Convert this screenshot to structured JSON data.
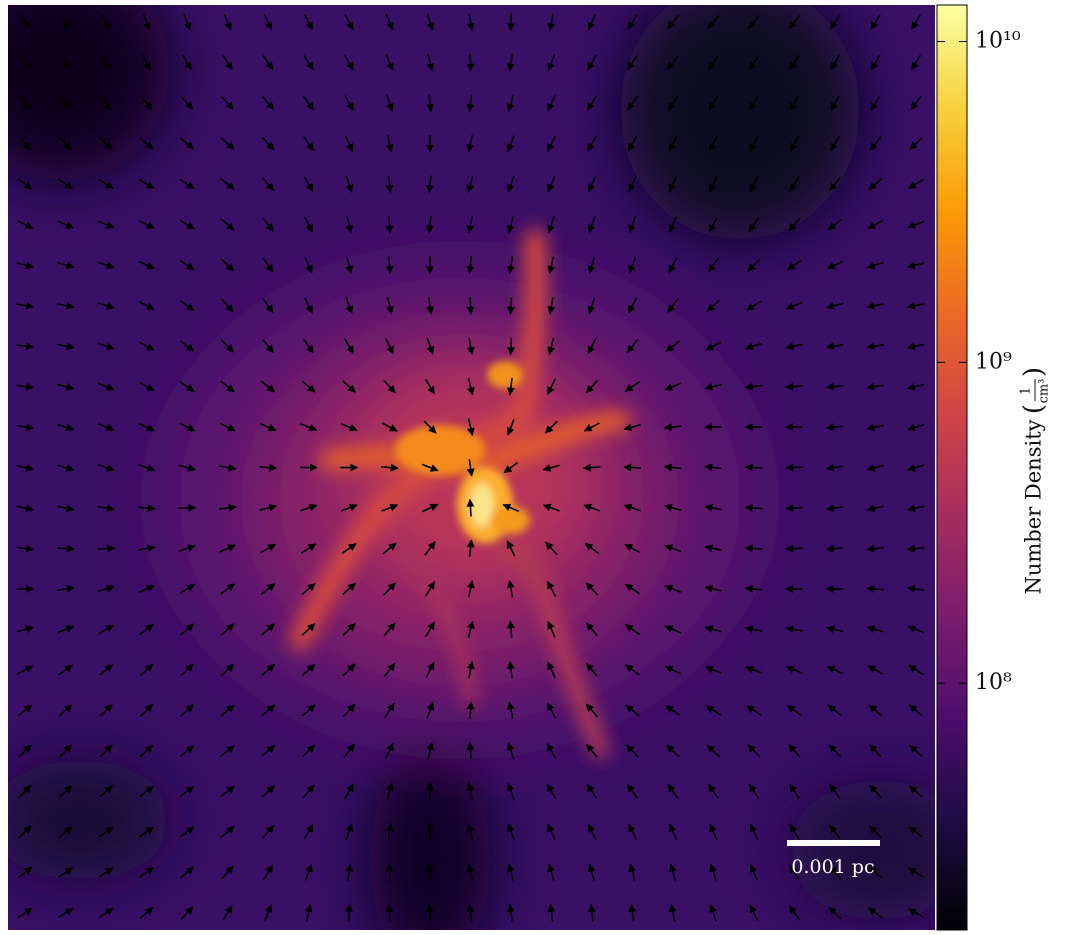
{
  "chart_data": {
    "type": "density-map",
    "colorbar_label": "Number Density",
    "colorbar_unit": {
      "numerator": "1",
      "denominator": "cm³"
    },
    "clim": [
      17000000,
      13000000000
    ],
    "log_scale": true,
    "ticks": [
      {
        "value": 100000000,
        "label": "10⁸"
      },
      {
        "value": 1000000000,
        "label": "10⁹"
      },
      {
        "value": 10000000000,
        "label": "10¹⁰"
      }
    ],
    "colors": [
      "#000004",
      "#1b0c41",
      "#4a0c6b",
      "#781c6d",
      "#a52c60",
      "#cf4446",
      "#ed6925",
      "#fb9b06",
      "#f7d13d",
      "#fcffa4"
    ],
    "scale_bar_label": "0.001 pc"
  }
}
